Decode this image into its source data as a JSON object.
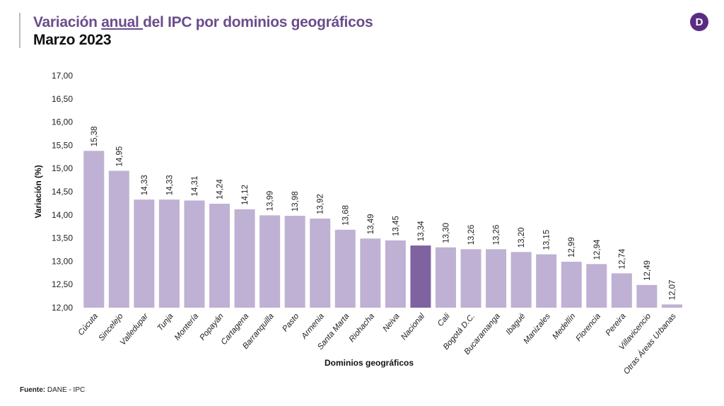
{
  "header": {
    "title_pre": "Variación ",
    "title_underlined": "anual ",
    "title_post": "del IPC por dominios geográficos",
    "subtitle": "Marzo 2023",
    "logo_letter": "D"
  },
  "footer": {
    "source_label": "Fuente:",
    "source_value": " DANE - IPC"
  },
  "colors": {
    "bar": "#bfb1d3",
    "highlight": "#7f62a0",
    "title": "#6a4d8c"
  },
  "chart_data": {
    "type": "bar",
    "title": "Variación anual del IPC por dominios geográficos",
    "xlabel": "Dominios geográficos",
    "ylabel": "Variación (%)",
    "ylim": [
      12,
      17
    ],
    "yticks": [
      "12,00",
      "12,50",
      "13,00",
      "13,50",
      "14,00",
      "14,50",
      "15,00",
      "15,50",
      "16,00",
      "16,50",
      "17,00"
    ],
    "categories": [
      "Cúcuta",
      "Sincelejo",
      "Valledupar",
      "Tunja",
      "Montería",
      "Popayán",
      "Cartagena",
      "Barranquilla",
      "Pasto",
      "Armenia",
      "Santa Marta",
      "Riohacha",
      "Neiva",
      "Nacional",
      "Cali",
      "Bogotá D.C.",
      "Bucaramanga",
      "Ibagué",
      "Manizales",
      "Medellín",
      "Florencia",
      "Pereira",
      "Villavicencio",
      "Otras Áreas Urbanas"
    ],
    "values": [
      15.38,
      14.95,
      14.33,
      14.33,
      14.31,
      14.24,
      14.12,
      13.99,
      13.98,
      13.92,
      13.68,
      13.49,
      13.45,
      13.34,
      13.3,
      13.26,
      13.26,
      13.2,
      13.15,
      12.99,
      12.94,
      12.74,
      12.49,
      12.07
    ],
    "labels": [
      "15,38",
      "14,95",
      "14,33",
      "14,33",
      "14,31",
      "14,24",
      "14,12",
      "13,99",
      "13,98",
      "13,92",
      "13,68",
      "13,49",
      "13,45",
      "13,34",
      "13,30",
      "13,26",
      "13,26",
      "13,20",
      "13,15",
      "12,99",
      "12,94",
      "12,74",
      "12,49",
      "12,07"
    ],
    "highlight": "Nacional",
    "grid": false,
    "legend": "none"
  }
}
